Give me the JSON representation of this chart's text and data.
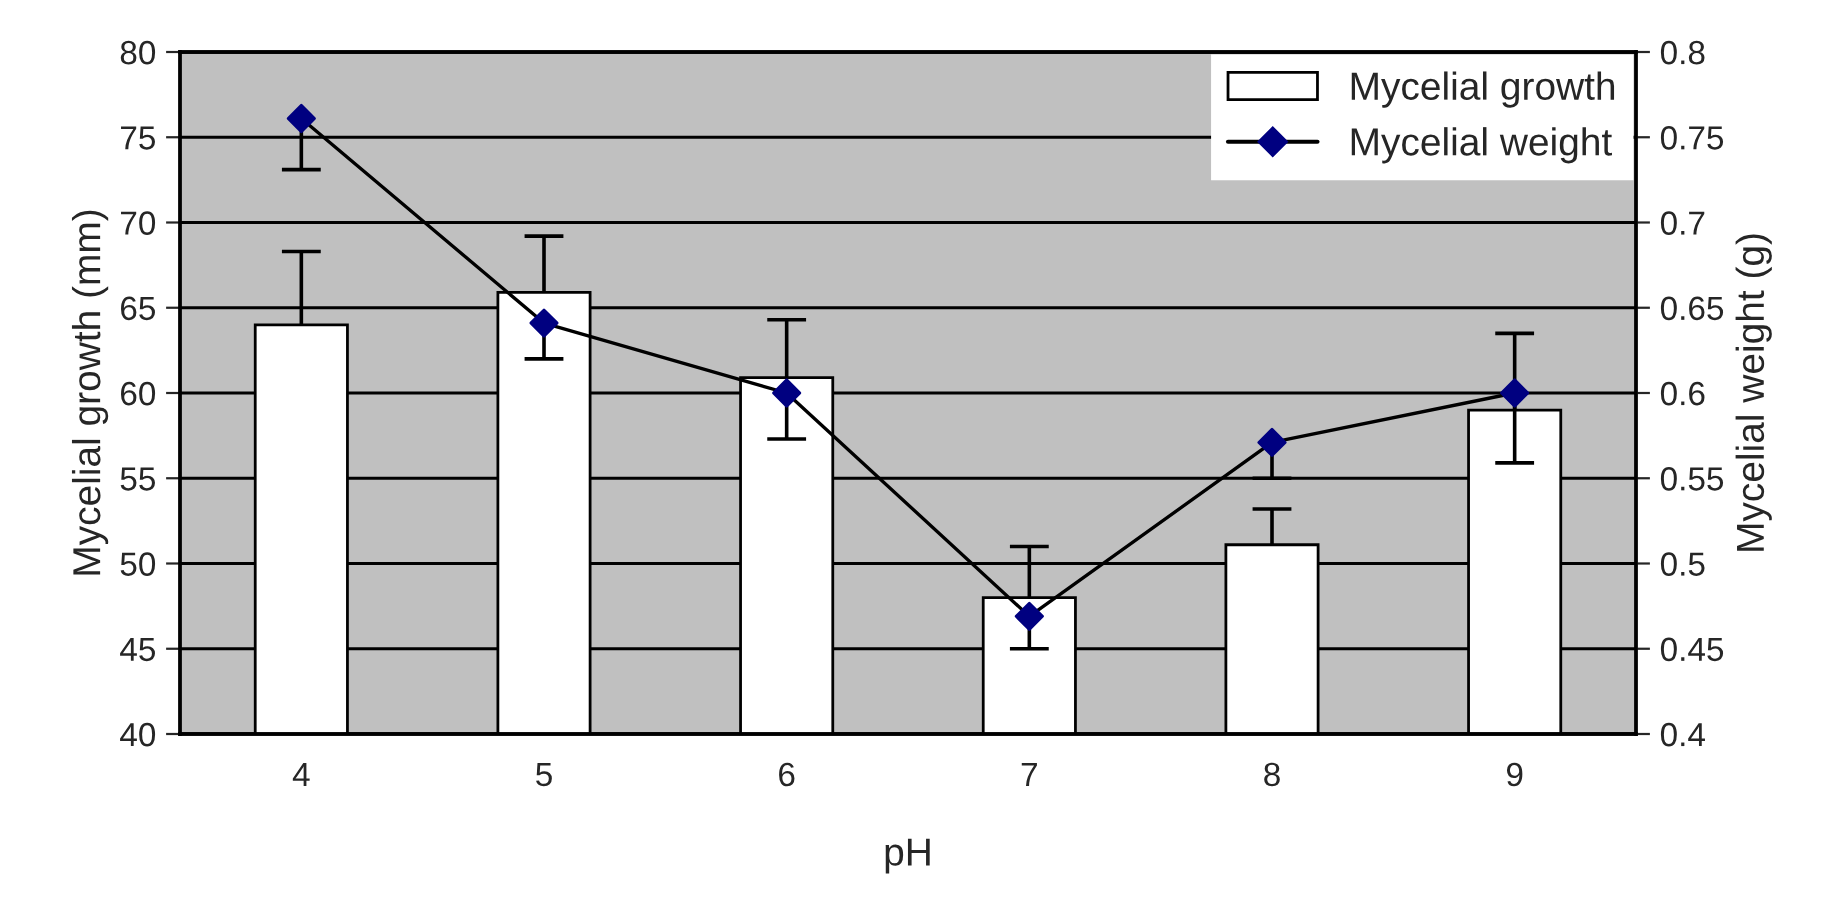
{
  "chart_data": {
    "type": "bar",
    "xlabel": "pH",
    "ylabel": "Mycelial growth (mm)",
    "y2label": "Mycelial weight (g)",
    "categories": [
      "4",
      "5",
      "6",
      "7",
      "8",
      "9"
    ],
    "series": [
      {
        "name": "Mycelial growth",
        "color": "#ffffff",
        "values": [
          64.0,
          65.9,
          60.9,
          48.0,
          51.1,
          59.0
        ],
        "errors": [
          [
            64.0,
            68.3
          ],
          [
            65.9,
            69.2
          ],
          [
            60.9,
            64.3
          ],
          [
            48.0,
            51.0
          ],
          [
            51.1,
            53.2
          ],
          [
            59.0,
            63.5
          ]
        ]
      },
      {
        "name": "Mycelial weight",
        "type": "line",
        "axis": "y2",
        "color": "#000080",
        "marker": "diamond",
        "line_style": "solid",
        "values": [
          0.761,
          0.641,
          0.6,
          0.469,
          0.571,
          0.6
        ],
        "errors": [
          [
            0.731,
            0.761
          ],
          [
            0.62,
            0.641
          ],
          [
            0.573,
            0.6
          ],
          [
            0.45,
            0.469
          ],
          [
            0.55,
            0.571
          ],
          [
            0.559,
            0.6
          ]
        ]
      }
    ],
    "ylim": [
      40,
      80
    ],
    "yticks": [
      40,
      45,
      50,
      55,
      60,
      65,
      70,
      75,
      80
    ],
    "y2lim": [
      0.4,
      0.8
    ],
    "y2ticks": [
      {
        "value": 0.4,
        "label": "0.4"
      },
      {
        "value": 0.45,
        "label": "0.45"
      },
      {
        "value": 0.5,
        "label": "0.5"
      },
      {
        "value": 0.55,
        "label": "0.55"
      },
      {
        "value": 0.6,
        "label": "0.6"
      },
      {
        "value": 0.65,
        "label": "0.65"
      },
      {
        "value": 0.7,
        "label": "0.7"
      },
      {
        "value": 0.75,
        "label": "0.75"
      },
      {
        "value": 0.8,
        "label": "0.8"
      }
    ],
    "grid": "y",
    "legend": "top right"
  }
}
